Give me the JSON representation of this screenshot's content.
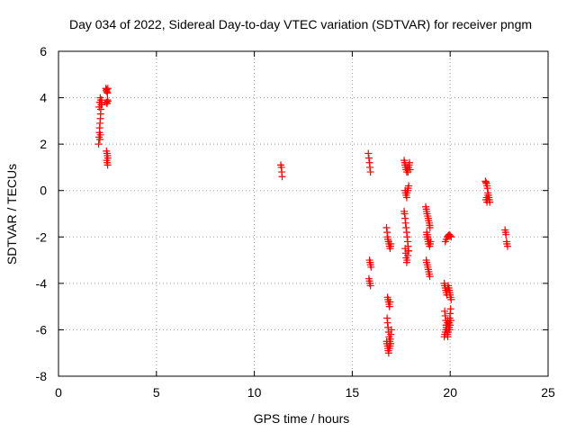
{
  "chart_data": {
    "type": "scatter",
    "title": "Day 034 of 2022, Sidereal Day-to-day VTEC variation (SDTVAR) for receiver pngm",
    "xlabel": "GPS time / hours",
    "ylabel": "SDTVAR / TECUs",
    "xlim": [
      0,
      25
    ],
    "ylim": [
      -8,
      6
    ],
    "xticks": [
      0,
      5,
      10,
      15,
      20,
      25
    ],
    "yticks": [
      -8,
      -6,
      -4,
      -2,
      0,
      2,
      4,
      6
    ],
    "grid": true,
    "marker": "+",
    "marker_color": "#ff0000",
    "series": [
      {
        "name": "SDTVAR",
        "x": [
          2.05,
          2.07,
          2.09,
          2.1,
          2.12,
          2.14,
          2.15,
          2.16,
          2.18,
          2.2,
          2.08,
          2.1,
          2.13,
          2.16,
          2.19,
          2.22,
          2.11,
          2.14,
          2.42,
          2.44,
          2.46,
          2.48,
          2.5,
          2.52,
          2.45,
          2.48,
          2.5,
          2.52,
          2.45,
          2.48,
          2.5,
          2.52,
          2.46,
          2.49,
          2.51,
          11.35,
          11.38,
          11.4,
          11.42,
          15.82,
          15.85,
          15.88,
          15.9,
          15.93,
          15.88,
          15.91,
          15.93,
          15.96,
          15.85,
          15.88,
          15.9,
          15.93,
          16.75,
          16.78,
          16.8,
          16.82,
          16.85,
          16.88,
          16.9,
          16.93,
          16.95,
          16.97,
          16.8,
          16.83,
          16.85,
          16.88,
          16.9,
          16.93,
          16.78,
          16.8,
          16.83,
          16.86,
          16.88,
          16.91,
          16.93,
          16.96,
          16.75,
          16.77,
          16.8,
          16.82,
          16.84,
          16.86,
          16.89,
          16.91,
          16.94,
          16.97,
          17.0,
          17.65,
          17.68,
          17.7,
          17.72,
          17.75,
          17.78,
          17.8,
          17.82,
          17.85,
          17.88,
          17.9,
          17.92,
          17.95,
          17.7,
          17.72,
          17.75,
          17.78,
          17.8,
          17.83,
          17.85,
          17.88,
          17.65,
          17.67,
          17.7,
          17.72,
          17.75,
          17.78,
          17.8,
          17.83,
          17.85,
          17.88,
          17.7,
          17.73,
          17.75,
          17.78,
          17.8,
          17.83,
          17.85,
          18.75,
          18.78,
          18.8,
          18.82,
          18.85,
          18.88,
          18.9,
          18.93,
          18.95,
          18.97,
          18.8,
          18.83,
          18.85,
          18.88,
          18.9,
          18.93,
          18.95,
          18.98,
          19.0,
          18.78,
          18.8,
          18.83,
          18.86,
          18.88,
          18.91,
          18.93,
          18.96,
          18.8,
          18.82,
          18.85,
          18.88,
          18.9,
          19.7,
          19.72,
          19.75,
          19.78,
          19.8,
          19.83,
          19.85,
          19.88,
          19.9,
          19.93,
          19.95,
          19.98,
          20.0,
          20.02,
          20.05,
          19.72,
          19.75,
          19.78,
          19.8,
          19.83,
          19.85,
          19.88,
          19.9,
          19.93,
          19.96,
          19.98,
          20.0,
          20.02,
          19.7,
          19.73,
          19.75,
          19.78,
          19.8,
          19.83,
          19.85,
          19.88,
          19.9,
          19.92,
          19.95,
          19.98,
          20.0,
          20.03,
          19.75,
          19.8,
          19.85,
          19.9,
          19.95,
          20.0,
          20.05,
          21.8,
          21.83,
          21.85,
          21.88,
          21.9,
          21.93,
          21.95,
          21.97,
          22.0,
          22.02,
          21.83,
          21.86,
          21.88,
          21.9,
          21.93,
          22.8,
          22.83,
          22.85,
          22.88,
          22.9,
          22.93
        ],
        "y": [
          2.0,
          2.3,
          2.5,
          2.7,
          2.9,
          3.1,
          3.3,
          3.5,
          3.7,
          3.9,
          3.6,
          3.8,
          4.0,
          3.9,
          3.8,
          3.7,
          2.2,
          2.4,
          4.4,
          4.3,
          4.35,
          4.25,
          4.2,
          4.4,
          3.8,
          3.75,
          3.9,
          3.85,
          1.7,
          1.6,
          1.5,
          1.4,
          1.3,
          1.2,
          1.1,
          1.1,
          1.0,
          0.8,
          0.6,
          1.6,
          1.4,
          1.2,
          1.0,
          0.8,
          -3.0,
          -3.1,
          -3.2,
          -3.3,
          -3.8,
          -3.9,
          -4.0,
          -4.1,
          -1.6,
          -1.8,
          -2.0,
          -2.1,
          -2.2,
          -2.3,
          -2.4,
          -2.5,
          -2.4,
          -2.3,
          -4.6,
          -4.7,
          -4.8,
          -4.9,
          -5.0,
          -4.8,
          -5.5,
          -5.7,
          -5.9,
          -6.1,
          -6.3,
          -6.5,
          -6.7,
          -6.6,
          -6.5,
          -6.6,
          -6.7,
          -6.8,
          -6.9,
          -7.0,
          -6.8,
          -6.6,
          -6.4,
          -6.2,
          -6.0,
          1.3,
          1.2,
          1.1,
          1.0,
          0.9,
          0.8,
          1.0,
          0.9,
          0.8,
          1.0,
          1.1,
          1.2,
          0.9,
          0.0,
          -0.1,
          -0.2,
          -0.3,
          -0.1,
          0.0,
          0.1,
          0.2,
          -0.9,
          -1.0,
          -1.2,
          -1.4,
          -1.6,
          -1.8,
          -2.0,
          -2.2,
          -2.4,
          -2.6,
          -2.5,
          -2.7,
          -2.9,
          -3.1,
          -3.0,
          -2.8,
          -2.6,
          -0.7,
          -0.8,
          -0.9,
          -1.0,
          -1.1,
          -1.2,
          -1.3,
          -1.4,
          -1.5,
          -1.6,
          -1.8,
          -1.9,
          -2.0,
          -2.1,
          -2.2,
          -2.3,
          -2.4,
          -2.3,
          -2.2,
          -3.0,
          -3.1,
          -3.2,
          -3.3,
          -3.4,
          -3.5,
          -3.6,
          -3.7,
          -1.9,
          -2.0,
          -2.1,
          -2.2,
          -2.3,
          -4.0,
          -4.1,
          -4.2,
          -4.3,
          -4.4,
          -4.5,
          -4.3,
          -4.2,
          -4.1,
          -4.2,
          -4.3,
          -4.4,
          -4.5,
          -4.6,
          -4.7,
          -5.2,
          -5.4,
          -5.6,
          -5.8,
          -6.0,
          -6.2,
          -6.3,
          -6.1,
          -5.9,
          -5.7,
          -5.5,
          -5.3,
          -5.1,
          -6.3,
          -6.2,
          -6.1,
          -6.0,
          -5.9,
          -5.8,
          -5.7,
          -5.6,
          -5.7,
          -5.8,
          -5.9,
          -6.0,
          -5.8,
          -5.6,
          -2.2,
          -2.1,
          -2.0,
          -1.95,
          -1.9,
          -1.95,
          -2.0,
          0.4,
          0.35,
          0.3,
          0.2,
          0.1,
          -0.1,
          -0.2,
          -0.3,
          -0.4,
          -0.5,
          -0.4,
          -0.3,
          -0.5,
          -0.4,
          -0.2,
          -1.7,
          -1.8,
          -1.9,
          -2.2,
          -2.3,
          -2.4
        ]
      }
    ]
  }
}
